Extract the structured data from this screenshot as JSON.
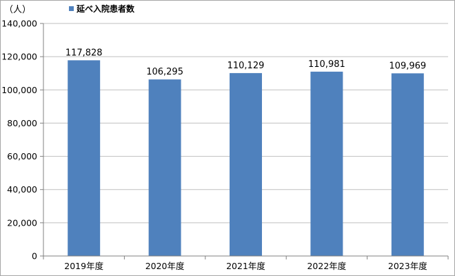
{
  "chart_data": {
    "type": "bar",
    "unit_label": "（人）",
    "categories": [
      "2019年度",
      "2020年度",
      "2021年度",
      "2022年度",
      "2023年度"
    ],
    "series": [
      {
        "name": "延べ入院患者数",
        "values": [
          117828,
          106295,
          110129,
          110981,
          109969
        ]
      }
    ],
    "data_labels": [
      "117,828",
      "106,295",
      "110,129",
      "110,981",
      "109,969"
    ],
    "y_ticks": [
      "0",
      "20,000",
      "40,000",
      "60,000",
      "80,000",
      "100,000",
      "120,000",
      "140,000"
    ],
    "ylim": [
      0,
      140000
    ],
    "grid": true,
    "legend_position": "top-left",
    "colors": {
      "bar": "#4F81BD",
      "grid": "#BFBFBF",
      "axis": "#808080",
      "frame": "#A6A6A6"
    }
  }
}
